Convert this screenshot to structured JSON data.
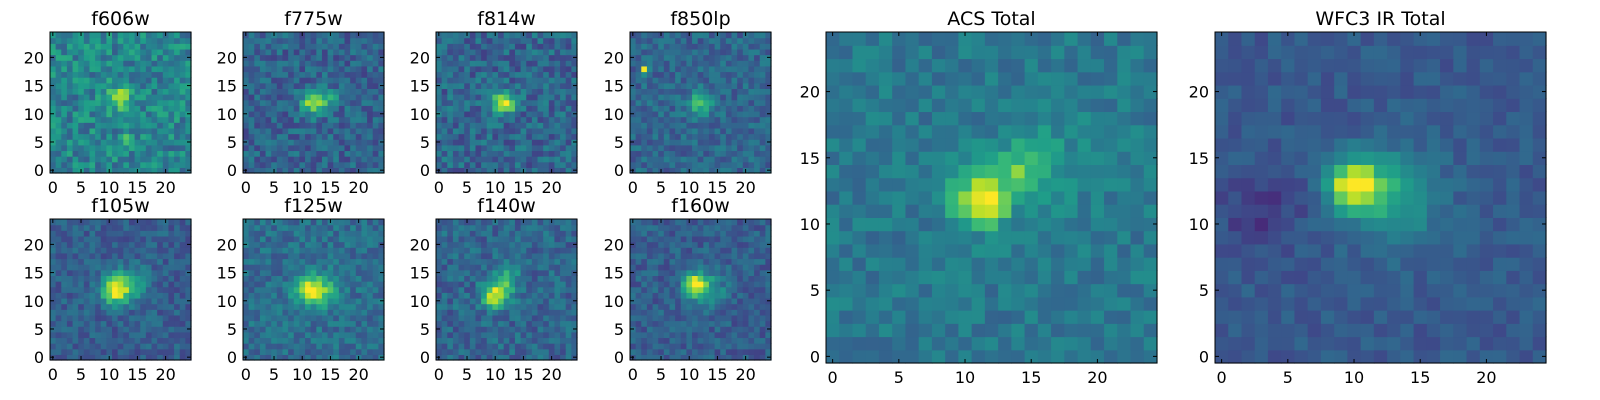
{
  "figure": {
    "description_free": true
  },
  "colormap": {
    "name": "viridis",
    "stops": [
      "#440154",
      "#482878",
      "#3e4989",
      "#31688e",
      "#26828e",
      "#1f9e89",
      "#35b779",
      "#6ece58",
      "#b5de2b",
      "#fde725"
    ]
  },
  "chart_data": [
    {
      "type": "heatmap",
      "title": "f606w",
      "grid_size": 25,
      "xticks": [
        0,
        5,
        10,
        15,
        20
      ],
      "yticks": [
        0,
        5,
        10,
        15,
        20
      ],
      "xlim": [
        -0.5,
        24.5
      ],
      "ylim": [
        -0.5,
        24.5
      ],
      "value_range": [
        0,
        1
      ],
      "background_level": 0.45,
      "noise": 0.16,
      "seed": 11,
      "sources": [
        {
          "x": 12,
          "y": 13,
          "amp": 0.35,
          "sigma": 1.6
        },
        {
          "x": 13,
          "y": 5,
          "amp": 0.3,
          "sigma": 0.8
        }
      ]
    },
    {
      "type": "heatmap",
      "title": "f775w",
      "grid_size": 25,
      "xticks": [
        0,
        5,
        10,
        15,
        20
      ],
      "yticks": [
        0,
        5,
        10,
        15,
        20
      ],
      "xlim": [
        -0.5,
        24.5
      ],
      "ylim": [
        -0.5,
        24.5
      ],
      "value_range": [
        0,
        1
      ],
      "background_level": 0.32,
      "noise": 0.13,
      "seed": 23,
      "sources": [
        {
          "x": 12,
          "y": 12,
          "amp": 0.55,
          "sigma": 1.5
        },
        {
          "x": 15,
          "y": 13,
          "amp": 0.3,
          "sigma": 1.0
        }
      ]
    },
    {
      "type": "heatmap",
      "title": "f814w",
      "grid_size": 25,
      "xticks": [
        0,
        5,
        10,
        15,
        20
      ],
      "yticks": [
        0,
        5,
        10,
        15,
        20
      ],
      "xlim": [
        -0.5,
        24.5
      ],
      "ylim": [
        -0.5,
        24.5
      ],
      "value_range": [
        0,
        1
      ],
      "background_level": 0.33,
      "noise": 0.14,
      "seed": 37,
      "sources": [
        {
          "x": 11,
          "y": 12,
          "amp": 0.55,
          "sigma": 1.3
        },
        {
          "x": 13,
          "y": 12,
          "amp": 0.3,
          "sigma": 1.0
        }
      ]
    },
    {
      "type": "heatmap",
      "title": "f850lp",
      "grid_size": 25,
      "xticks": [
        0,
        5,
        10,
        15,
        20
      ],
      "yticks": [
        0,
        5,
        10,
        15,
        20
      ],
      "xlim": [
        -0.5,
        24.5
      ],
      "ylim": [
        -0.5,
        24.5
      ],
      "value_range": [
        0,
        1
      ],
      "background_level": 0.33,
      "noise": 0.11,
      "seed": 41,
      "sources": [
        {
          "x": 12,
          "y": 12,
          "amp": 0.35,
          "sigma": 1.6
        },
        {
          "x": 2,
          "y": 18,
          "amp": 0.6,
          "sigma": 0.45
        }
      ]
    },
    {
      "type": "heatmap",
      "title": "f105w",
      "grid_size": 25,
      "xticks": [
        0,
        5,
        10,
        15,
        20
      ],
      "yticks": [
        0,
        5,
        10,
        15,
        20
      ],
      "xlim": [
        -0.5,
        24.5
      ],
      "ylim": [
        -0.5,
        24.5
      ],
      "value_range": [
        0,
        1
      ],
      "background_level": 0.3,
      "noise": 0.1,
      "seed": 53,
      "sources": [
        {
          "x": 11,
          "y": 12,
          "amp": 0.65,
          "sigma": 1.7
        },
        {
          "x": 14,
          "y": 13,
          "amp": 0.25,
          "sigma": 2.2
        }
      ]
    },
    {
      "type": "heatmap",
      "title": "f125w",
      "grid_size": 25,
      "xticks": [
        0,
        5,
        10,
        15,
        20
      ],
      "yticks": [
        0,
        5,
        10,
        15,
        20
      ],
      "xlim": [
        -0.5,
        24.5
      ],
      "ylim": [
        -0.5,
        24.5
      ],
      "value_range": [
        0,
        1
      ],
      "background_level": 0.36,
      "noise": 0.11,
      "seed": 67,
      "sources": [
        {
          "x": 11,
          "y": 12,
          "amp": 0.55,
          "sigma": 1.7
        },
        {
          "x": 14,
          "y": 12,
          "amp": 0.3,
          "sigma": 2.0
        }
      ]
    },
    {
      "type": "heatmap",
      "title": "f140w",
      "grid_size": 25,
      "xticks": [
        0,
        5,
        10,
        15,
        20
      ],
      "yticks": [
        0,
        5,
        10,
        15,
        20
      ],
      "xlim": [
        -0.5,
        24.5
      ],
      "ylim": [
        -0.5,
        24.5
      ],
      "value_range": [
        0,
        1
      ],
      "background_level": 0.33,
      "noise": 0.12,
      "seed": 79,
      "sources": [
        {
          "x": 10,
          "y": 11,
          "amp": 0.6,
          "sigma": 1.6
        },
        {
          "x": 12,
          "y": 14,
          "amp": 0.25,
          "sigma": 1.8
        }
      ]
    },
    {
      "type": "heatmap",
      "title": "f160w",
      "grid_size": 25,
      "xticks": [
        0,
        5,
        10,
        15,
        20
      ],
      "yticks": [
        0,
        5,
        10,
        15,
        20
      ],
      "xlim": [
        -0.5,
        24.5
      ],
      "ylim": [
        -0.5,
        24.5
      ],
      "value_range": [
        0,
        1
      ],
      "background_level": 0.3,
      "noise": 0.1,
      "seed": 83,
      "sources": [
        {
          "x": 11,
          "y": 13,
          "amp": 0.6,
          "sigma": 1.3
        },
        {
          "x": 13,
          "y": 12,
          "amp": 0.3,
          "sigma": 2.2
        }
      ]
    },
    {
      "type": "heatmap",
      "title": "ACS Total",
      "grid_size": 25,
      "xticks": [
        0,
        5,
        10,
        15,
        20
      ],
      "yticks": [
        0,
        5,
        10,
        15,
        20
      ],
      "xlim": [
        -0.5,
        24.5
      ],
      "ylim": [
        -0.5,
        24.5
      ],
      "value_range": [
        0,
        1
      ],
      "background_level": 0.4,
      "noise": 0.09,
      "seed": 97,
      "sources": [
        {
          "x": 11,
          "y": 12,
          "amp": 0.5,
          "sigma": 1.5
        },
        {
          "x": 12,
          "y": 11,
          "amp": 0.25,
          "sigma": 0.8
        },
        {
          "x": 14,
          "y": 14,
          "amp": 0.25,
          "sigma": 1.3
        },
        {
          "x": 16,
          "y": 15,
          "amp": 0.12,
          "sigma": 2.5
        }
      ]
    },
    {
      "type": "heatmap",
      "title": "WFC3 IR Total",
      "grid_size": 25,
      "xticks": [
        0,
        5,
        10,
        15,
        20
      ],
      "yticks": [
        0,
        5,
        10,
        15,
        20
      ],
      "xlim": [
        -0.5,
        24.5
      ],
      "ylim": [
        -0.5,
        24.5
      ],
      "value_range": [
        0,
        1
      ],
      "background_level": 0.28,
      "noise": 0.06,
      "seed": 109,
      "sources": [
        {
          "x": 10,
          "y": 13,
          "amp": 0.7,
          "sigma": 1.3
        },
        {
          "x": 13,
          "y": 12,
          "amp": 0.3,
          "sigma": 2.5
        },
        {
          "x": 3,
          "y": 11,
          "amp": -0.12,
          "sigma": 2.0
        }
      ]
    }
  ]
}
